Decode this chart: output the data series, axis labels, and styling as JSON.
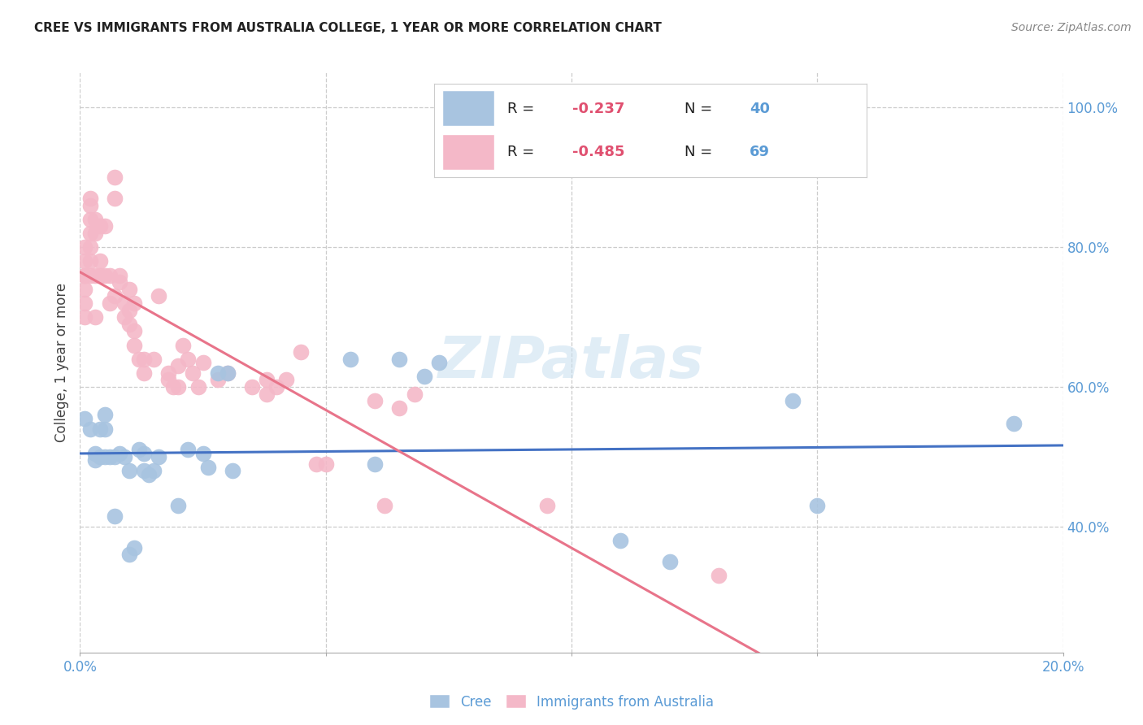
{
  "title": "CREE VS IMMIGRANTS FROM AUSTRALIA COLLEGE, 1 YEAR OR MORE CORRELATION CHART",
  "source": "Source: ZipAtlas.com",
  "ylabel": "College, 1 year or more",
  "xmin": 0.0,
  "xmax": 0.2,
  "ymin": 0.22,
  "ymax": 1.05,
  "yticks": [
    0.4,
    0.6,
    0.8,
    1.0
  ],
  "xticks": [
    0.0,
    0.05,
    0.1,
    0.15,
    0.2
  ],
  "xtick_labels": [
    "0.0%",
    "",
    "",
    "",
    "20.0%"
  ],
  "ytick_labels": [
    "40.0%",
    "60.0%",
    "80.0%",
    "100.0%"
  ],
  "watermark": "ZIPatlas",
  "cree_color": "#a8c4e0",
  "immig_color": "#f4b8c8",
  "cree_line_color": "#4472c4",
  "immig_line_color": "#e8748a",
  "cree_scatter": [
    [
      0.001,
      0.555
    ],
    [
      0.002,
      0.54
    ],
    [
      0.003,
      0.505
    ],
    [
      0.003,
      0.495
    ],
    [
      0.004,
      0.54
    ],
    [
      0.004,
      0.5
    ],
    [
      0.005,
      0.5
    ],
    [
      0.005,
      0.54
    ],
    [
      0.005,
      0.56
    ],
    [
      0.006,
      0.5
    ],
    [
      0.007,
      0.5
    ],
    [
      0.007,
      0.415
    ],
    [
      0.008,
      0.505
    ],
    [
      0.009,
      0.5
    ],
    [
      0.01,
      0.48
    ],
    [
      0.01,
      0.36
    ],
    [
      0.011,
      0.37
    ],
    [
      0.012,
      0.51
    ],
    [
      0.013,
      0.48
    ],
    [
      0.013,
      0.505
    ],
    [
      0.014,
      0.475
    ],
    [
      0.015,
      0.48
    ],
    [
      0.016,
      0.5
    ],
    [
      0.02,
      0.43
    ],
    [
      0.022,
      0.51
    ],
    [
      0.025,
      0.505
    ],
    [
      0.026,
      0.485
    ],
    [
      0.028,
      0.62
    ],
    [
      0.03,
      0.62
    ],
    [
      0.031,
      0.48
    ],
    [
      0.055,
      0.64
    ],
    [
      0.06,
      0.49
    ],
    [
      0.065,
      0.64
    ],
    [
      0.07,
      0.615
    ],
    [
      0.073,
      0.635
    ],
    [
      0.11,
      0.38
    ],
    [
      0.12,
      0.35
    ],
    [
      0.145,
      0.58
    ],
    [
      0.15,
      0.43
    ],
    [
      0.19,
      0.548
    ]
  ],
  "immig_scatter": [
    [
      0.001,
      0.74
    ],
    [
      0.001,
      0.72
    ],
    [
      0.001,
      0.7
    ],
    [
      0.001,
      0.76
    ],
    [
      0.001,
      0.78
    ],
    [
      0.001,
      0.8
    ],
    [
      0.001,
      0.76
    ],
    [
      0.002,
      0.82
    ],
    [
      0.002,
      0.76
    ],
    [
      0.002,
      0.78
    ],
    [
      0.002,
      0.8
    ],
    [
      0.002,
      0.84
    ],
    [
      0.002,
      0.86
    ],
    [
      0.002,
      0.87
    ],
    [
      0.003,
      0.76
    ],
    [
      0.003,
      0.82
    ],
    [
      0.003,
      0.84
    ],
    [
      0.003,
      0.7
    ],
    [
      0.004,
      0.76
    ],
    [
      0.004,
      0.83
    ],
    [
      0.004,
      0.78
    ],
    [
      0.005,
      0.76
    ],
    [
      0.005,
      0.83
    ],
    [
      0.006,
      0.76
    ],
    [
      0.006,
      0.72
    ],
    [
      0.007,
      0.87
    ],
    [
      0.007,
      0.9
    ],
    [
      0.007,
      0.73
    ],
    [
      0.008,
      0.75
    ],
    [
      0.008,
      0.76
    ],
    [
      0.009,
      0.72
    ],
    [
      0.009,
      0.7
    ],
    [
      0.01,
      0.74
    ],
    [
      0.01,
      0.71
    ],
    [
      0.01,
      0.69
    ],
    [
      0.011,
      0.72
    ],
    [
      0.011,
      0.68
    ],
    [
      0.011,
      0.66
    ],
    [
      0.012,
      0.64
    ],
    [
      0.013,
      0.64
    ],
    [
      0.013,
      0.62
    ],
    [
      0.015,
      0.64
    ],
    [
      0.016,
      0.73
    ],
    [
      0.018,
      0.62
    ],
    [
      0.018,
      0.61
    ],
    [
      0.019,
      0.6
    ],
    [
      0.02,
      0.6
    ],
    [
      0.02,
      0.63
    ],
    [
      0.021,
      0.66
    ],
    [
      0.022,
      0.64
    ],
    [
      0.023,
      0.62
    ],
    [
      0.024,
      0.6
    ],
    [
      0.025,
      0.635
    ],
    [
      0.028,
      0.61
    ],
    [
      0.03,
      0.62
    ],
    [
      0.035,
      0.6
    ],
    [
      0.038,
      0.61
    ],
    [
      0.038,
      0.59
    ],
    [
      0.04,
      0.6
    ],
    [
      0.042,
      0.61
    ],
    [
      0.045,
      0.65
    ],
    [
      0.048,
      0.49
    ],
    [
      0.05,
      0.49
    ],
    [
      0.06,
      0.58
    ],
    [
      0.062,
      0.43
    ],
    [
      0.065,
      0.57
    ],
    [
      0.068,
      0.59
    ],
    [
      0.095,
      0.43
    ],
    [
      0.13,
      0.33
    ]
  ]
}
